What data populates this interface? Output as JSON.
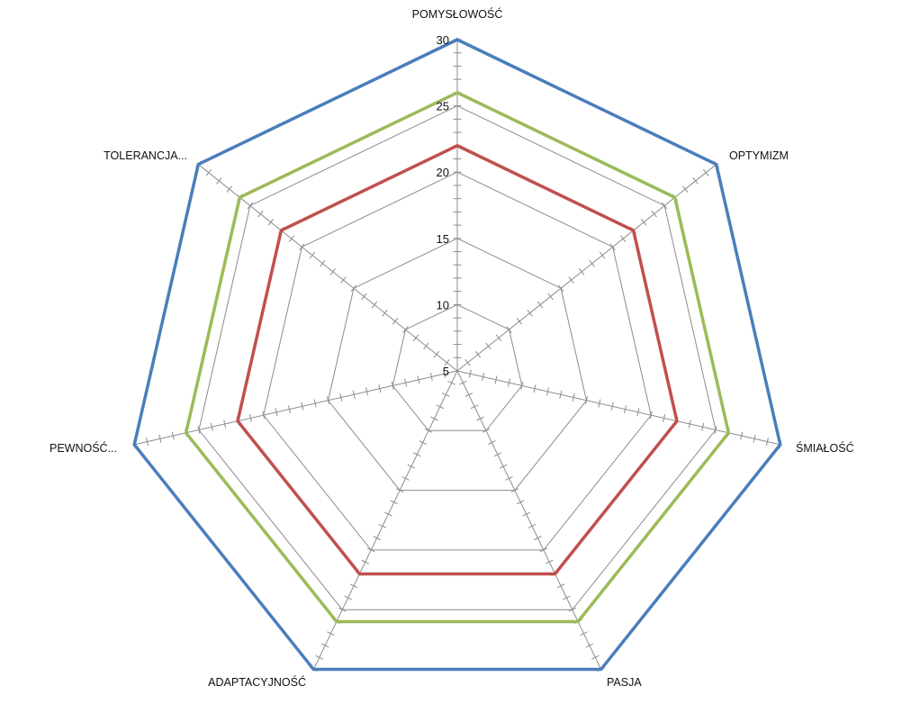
{
  "chart_data": {
    "type": "radar",
    "categories": [
      "POMYSŁOWOŚĆ",
      "OPTYMIZM",
      "ŚMIAŁOŚĆ",
      "PASJA",
      "ADAPTACYJNOŚĆ",
      "PEWNOŚĆ...",
      "TOLERANCJA..."
    ],
    "r_ticks": [
      "5",
      "10",
      "15",
      "20",
      "25",
      "30"
    ],
    "rlim": [
      5,
      30
    ],
    "minor_tick_step": 1,
    "grid": true,
    "legend": "none",
    "series": [
      {
        "values": [
          30,
          30,
          30,
          30,
          30,
          30,
          30
        ],
        "color": "#4a7ebb"
      },
      {
        "values": [
          26,
          26,
          26,
          26,
          26,
          26,
          26
        ],
        "color": "#9bbb59"
      },
      {
        "values": [
          22,
          22,
          22,
          22,
          22,
          22,
          22
        ],
        "color": "#c0504d"
      }
    ]
  }
}
